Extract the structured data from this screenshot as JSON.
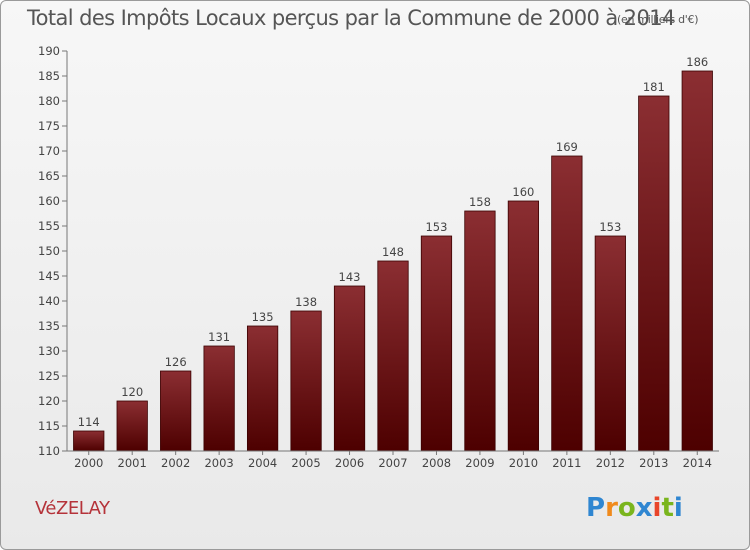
{
  "chart_data": {
    "type": "bar",
    "title": "Total des Impôts Locaux perçus par la Commune de 2000 à 2014",
    "subtitle": "(en milliers d'€)",
    "categories": [
      "2000",
      "2001",
      "2002",
      "2003",
      "2004",
      "2005",
      "2006",
      "2007",
      "2008",
      "2009",
      "2010",
      "2011",
      "2012",
      "2013",
      "2014"
    ],
    "values": [
      114,
      120,
      126,
      131,
      135,
      138,
      143,
      148,
      153,
      158,
      160,
      169,
      153,
      181,
      186
    ],
    "ylim": [
      110,
      190
    ],
    "yticks": [
      110,
      115,
      120,
      125,
      130,
      135,
      140,
      145,
      150,
      155,
      160,
      165,
      170,
      175,
      180,
      185,
      190
    ],
    "grid": false,
    "data_labels": true,
    "colors": {
      "bar_top": "#8b2e32",
      "bar_bottom": "#4d0000",
      "bar_edge": "#3a0000"
    }
  },
  "footer": {
    "commune": "VéZELAY",
    "brand": "Proxiti"
  },
  "brand_colors": [
    "#2f86d1",
    "#f08a1c",
    "#7ab51d",
    "#2f86d1",
    "#e8452a",
    "#7ab51d",
    "#2f86d1"
  ]
}
